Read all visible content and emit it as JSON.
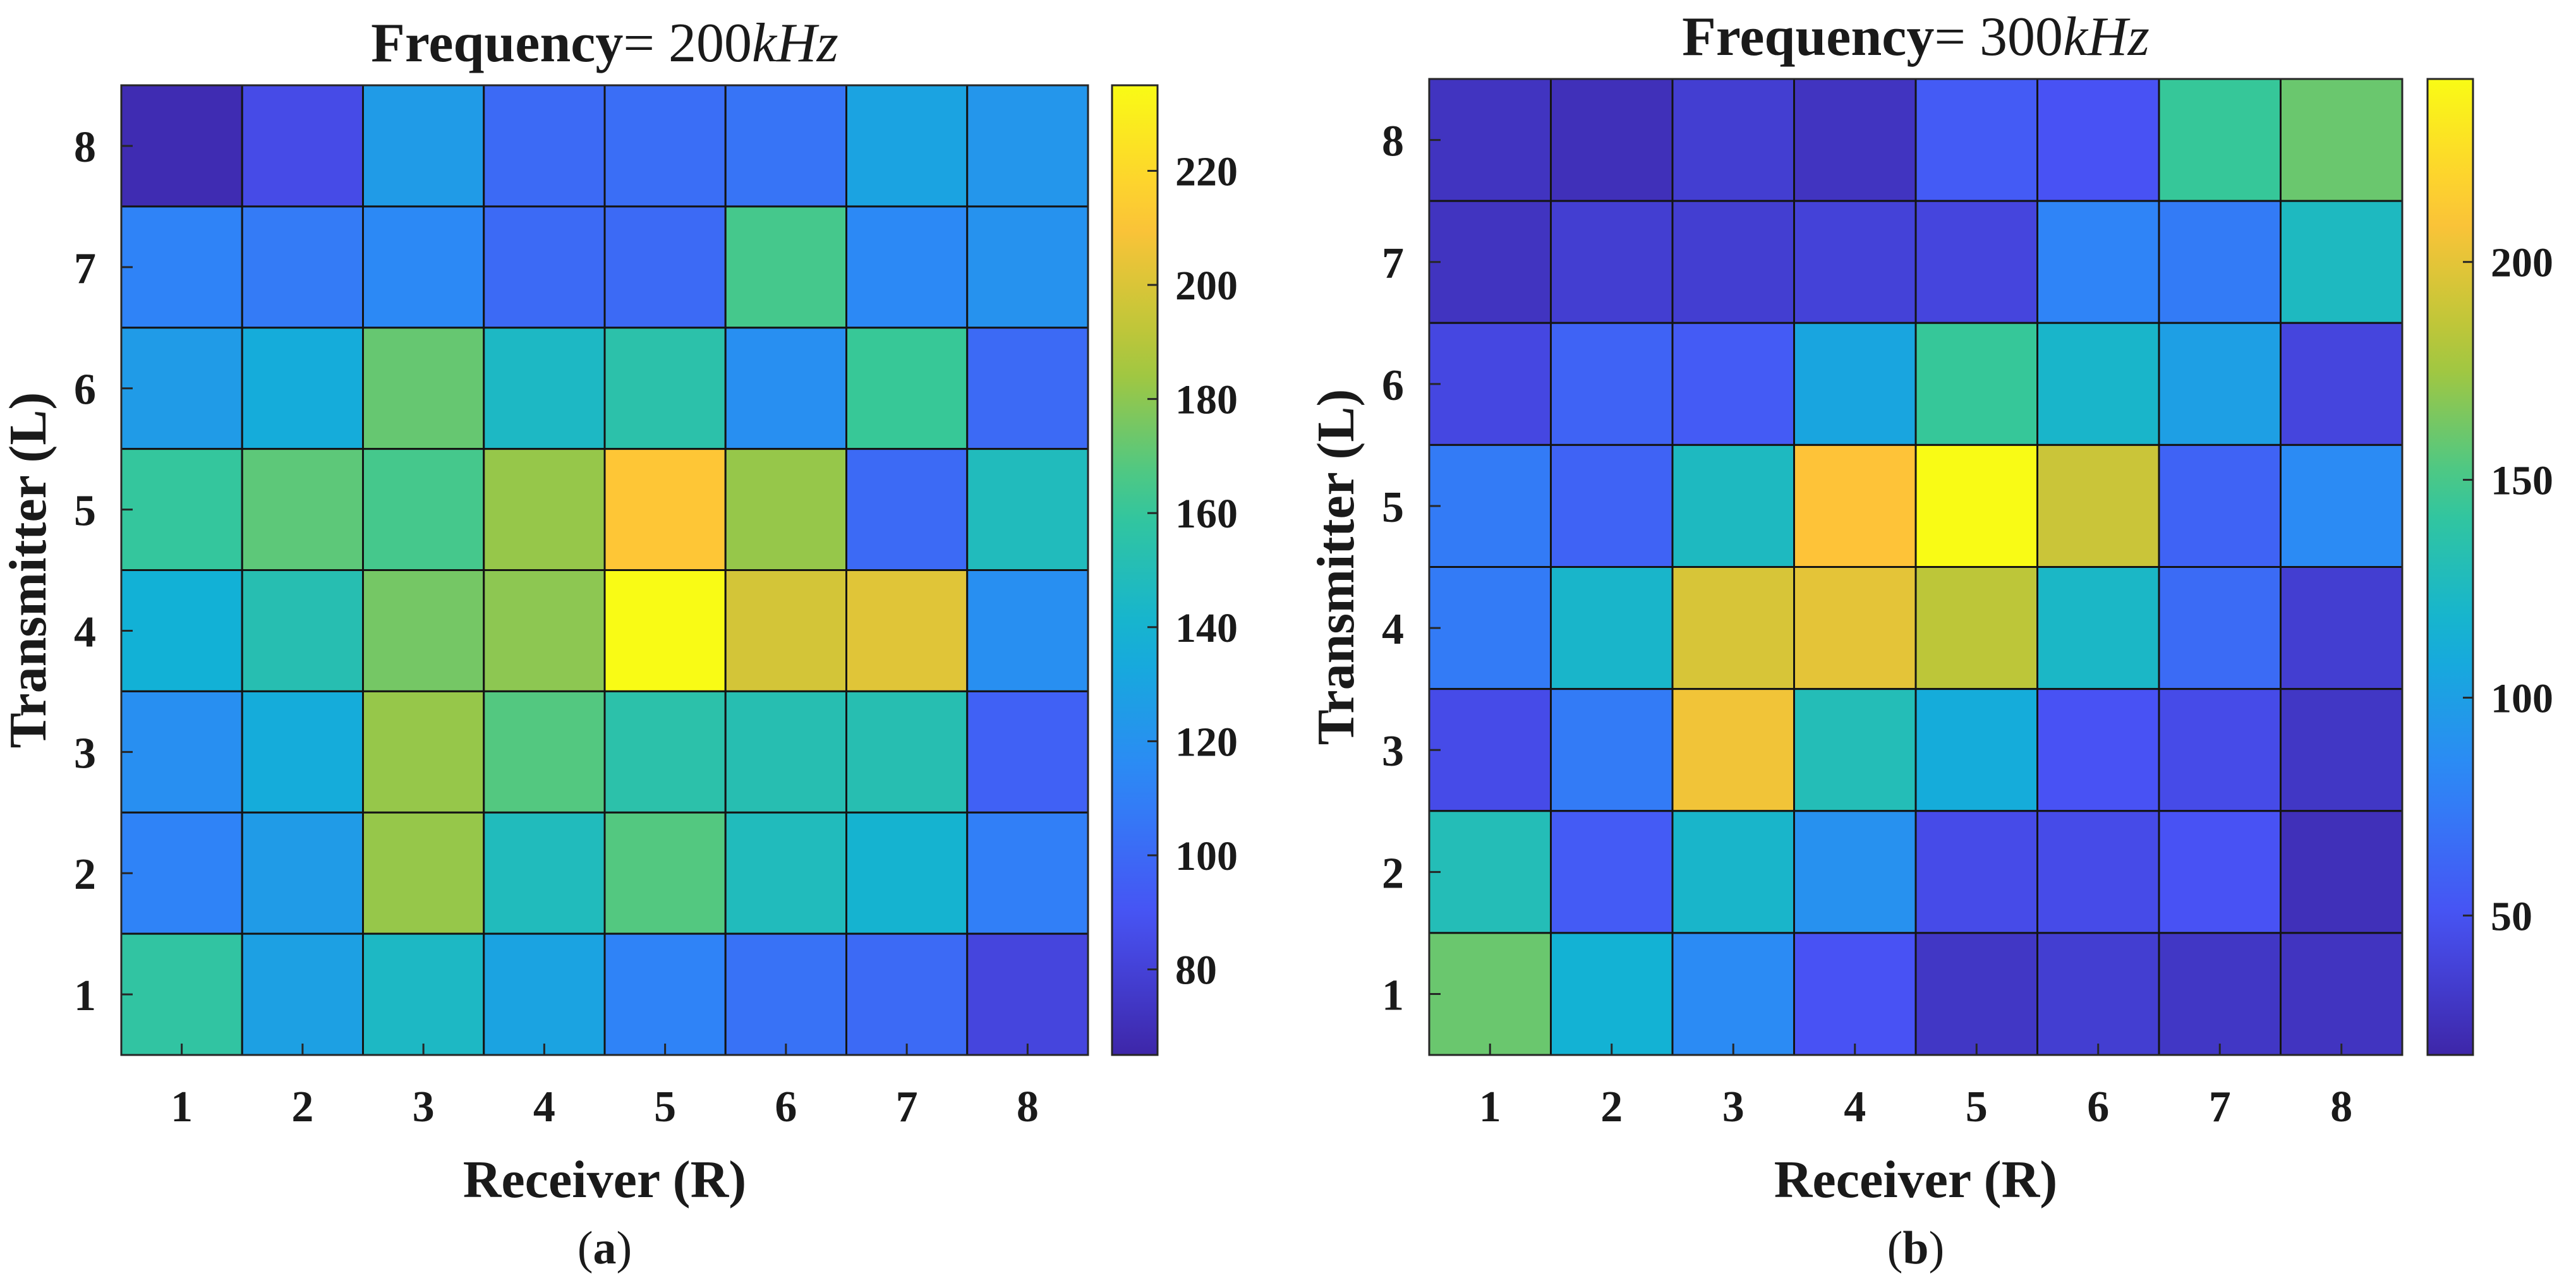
{
  "chart_data": [
    {
      "type": "heatmap",
      "title_text": "Frequency",
      "title_eq": "= ",
      "title_value": "200",
      "title_unit": "kHz",
      "xlabel": "Receiver (R)",
      "ylabel": "Transmitter (L)",
      "panel_label_open": "(",
      "panel_label_letter": "a",
      "panel_label_close": ")",
      "x_ticks": [
        "1",
        "2",
        "3",
        "4",
        "5",
        "6",
        "7",
        "8"
      ],
      "y_ticks": [
        "1",
        "2",
        "3",
        "4",
        "5",
        "6",
        "7",
        "8"
      ],
      "colorbar_range": [
        65,
        235
      ],
      "colorbar_ticks": [
        80,
        100,
        120,
        140,
        160,
        180,
        200,
        220
      ],
      "colormap": "parula",
      "values_rows_from_top_L8_to_L1": [
        [
          68,
          85,
          125,
          100,
          102,
          105,
          130,
          122
        ],
        [
          112,
          108,
          115,
          100,
          100,
          165,
          115,
          120
        ],
        [
          125,
          135,
          172,
          145,
          155,
          118,
          162,
          100
        ],
        [
          160,
          170,
          165,
          182,
          212,
          182,
          100,
          148
        ],
        [
          138,
          152,
          175,
          180,
          235,
          198,
          202,
          118
        ],
        [
          118,
          135,
          182,
          168,
          155,
          152,
          152,
          96
        ],
        [
          112,
          125,
          182,
          148,
          168,
          148,
          140,
          110
        ],
        [
          158,
          128,
          145,
          130,
          112,
          104,
          100,
          82
        ]
      ]
    },
    {
      "type": "heatmap",
      "title_text": "Frequency",
      "title_eq": "= ",
      "title_value": "300",
      "title_unit": "kHz",
      "xlabel": "Receiver (R)",
      "ylabel": "Transmitter (L)",
      "panel_label_open": "(",
      "panel_label_letter": "b",
      "panel_label_close": ")",
      "x_ticks": [
        "1",
        "2",
        "3",
        "4",
        "5",
        "6",
        "7",
        "8"
      ],
      "y_ticks": [
        "1",
        "2",
        "3",
        "4",
        "5",
        "6",
        "7",
        "8"
      ],
      "colorbar_range": [
        18,
        242
      ],
      "colorbar_ticks": [
        50,
        100,
        150,
        200
      ],
      "colormap": "parula",
      "values_rows_from_top_L8_to_L1": [
        [
          28,
          25,
          35,
          28,
          55,
          50,
          145,
          160
        ],
        [
          28,
          35,
          35,
          38,
          40,
          80,
          75,
          125
        ],
        [
          42,
          60,
          55,
          105,
          145,
          120,
          100,
          40
        ],
        [
          75,
          60,
          125,
          210,
          242,
          190,
          60,
          85
        ],
        [
          75,
          120,
          195,
          200,
          185,
          122,
          65,
          35
        ],
        [
          45,
          75,
          205,
          130,
          110,
          50,
          45,
          30
        ],
        [
          130,
          55,
          120,
          90,
          45,
          45,
          50,
          25
        ],
        [
          160,
          115,
          85,
          50,
          30,
          35,
          30,
          28
        ]
      ]
    }
  ]
}
